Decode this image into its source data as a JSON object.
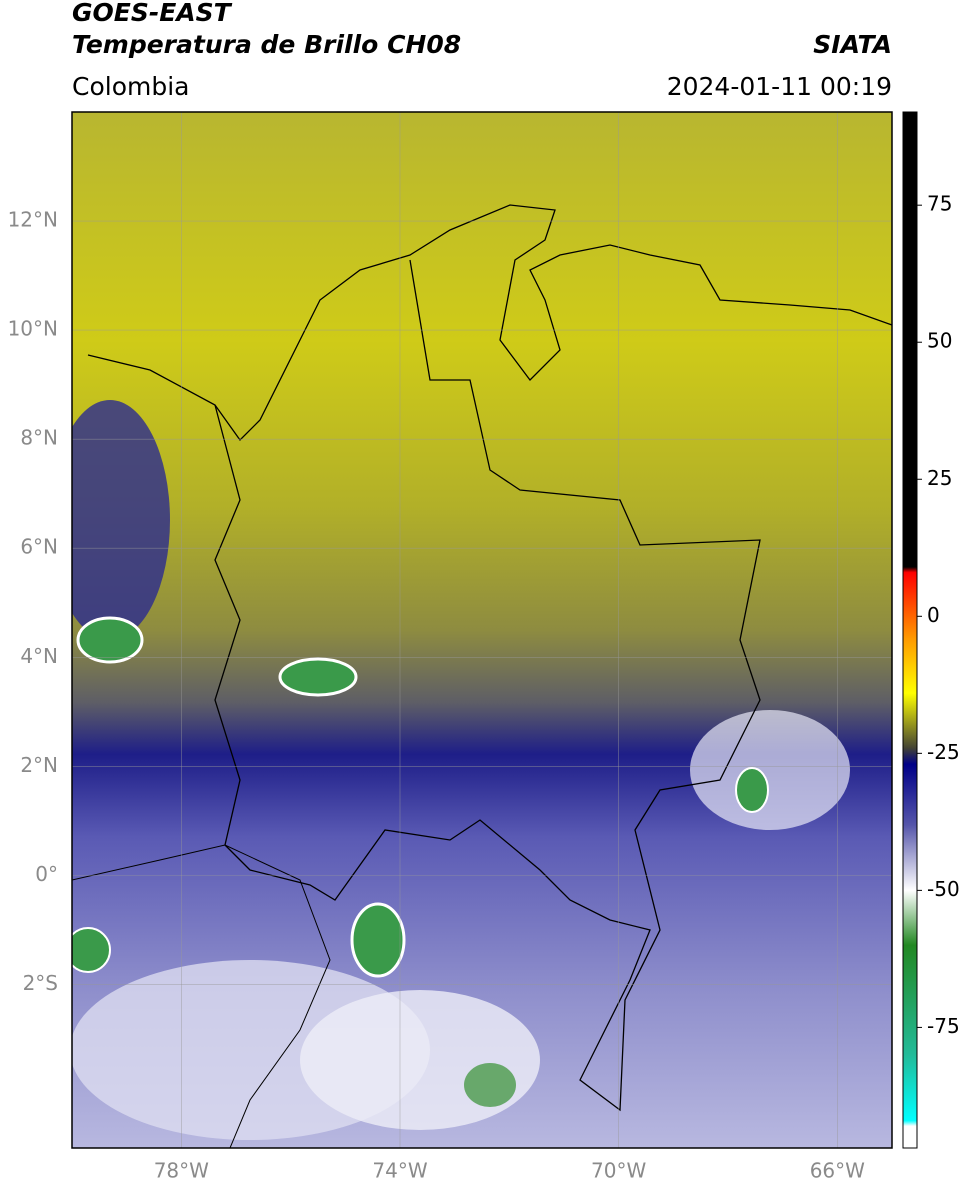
{
  "header": {
    "title_line1": "GOES-EAST",
    "title_line2": "Temperatura de Brillo CH08",
    "region": "Colombia",
    "source": "SIATA",
    "datetime": "2024-01-11 00:19"
  },
  "map": {
    "lon_range": [
      -80,
      -65
    ],
    "lat_range": [
      -5,
      14
    ],
    "lat_ticks": [
      {
        "value": 12,
        "label": "12°N"
      },
      {
        "value": 10,
        "label": "10°N"
      },
      {
        "value": 8,
        "label": "8°N"
      },
      {
        "value": 6,
        "label": "6°N"
      },
      {
        "value": 4,
        "label": "4°N"
      },
      {
        "value": 2,
        "label": "2°N"
      },
      {
        "value": 0,
        "label": "0°"
      },
      {
        "value": -2,
        "label": "2°S"
      }
    ],
    "lon_ticks": [
      {
        "value": -78,
        "label": "78°W"
      },
      {
        "value": -74,
        "label": "74°W"
      },
      {
        "value": -70,
        "label": "70°W"
      },
      {
        "value": -66,
        "label": "66°W"
      }
    ],
    "grid": true
  },
  "colorbar": {
    "range": [
      -97,
      92
    ],
    "ticks": [
      75,
      50,
      25,
      0,
      -25,
      -50,
      -75
    ],
    "stops": [
      {
        "value": 92,
        "color": "#000000"
      },
      {
        "value": 9,
        "color": "#000000"
      },
      {
        "value": 8,
        "color": "#ff0000"
      },
      {
        "value": -4,
        "color": "#ff9900"
      },
      {
        "value": -14,
        "color": "#ffff00"
      },
      {
        "value": -24,
        "color": "#444433"
      },
      {
        "value": -27,
        "color": "#000088"
      },
      {
        "value": -38,
        "color": "#5555aa"
      },
      {
        "value": -50,
        "color": "#ffffff"
      },
      {
        "value": -60,
        "color": "#228822"
      },
      {
        "value": -80,
        "color": "#22bb99"
      },
      {
        "value": -92,
        "color": "#00ffff"
      },
      {
        "value": -93,
        "color": "#ffffff"
      }
    ]
  }
}
